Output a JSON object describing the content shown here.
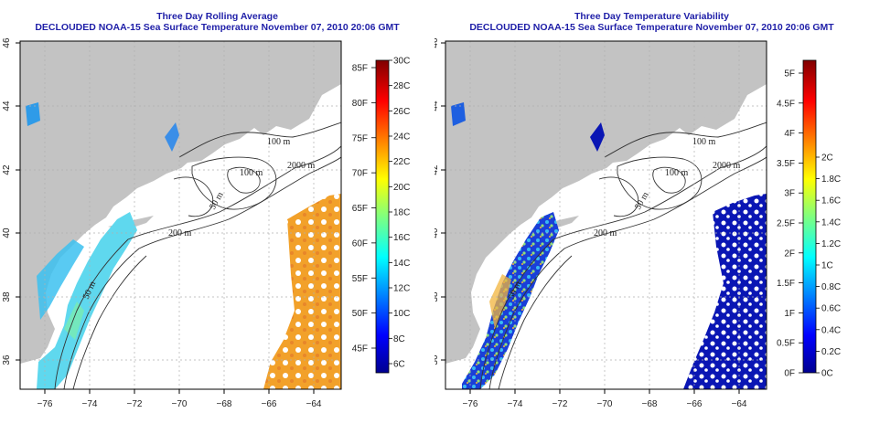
{
  "maps": [
    {
      "title": "Three Day Rolling Average",
      "subtitle": "DECLOUDED NOAA-15 Sea Surface Temperature November 07, 2010 20:06 GMT",
      "colorbar": {
        "left_labels": [
          "85F",
          "80F",
          "75F",
          "70F",
          "65F",
          "60F",
          "55F",
          "50F",
          "45F"
        ],
        "right_labels": [
          "30C",
          "28C",
          "26C",
          "24C",
          "22C",
          "20C",
          "18C",
          "16C",
          "14C",
          "12C",
          "10C",
          "8C",
          "6C"
        ]
      }
    },
    {
      "title": "Three Day Temperature Variability",
      "subtitle": "DECLOUDED NOAA-15 Sea Surface Temperature November 07, 2010 20:06 GMT",
      "colorbar": {
        "left_labels": [
          "5F",
          "4.5F",
          "4F",
          "3.5F",
          "3F",
          "2.5F",
          "2F",
          "1.5F",
          "1F",
          "0.5F",
          "0F"
        ],
        "right_labels": [
          "2C",
          "1.8C",
          "1.6C",
          "1.4C",
          "1.2C",
          "1C",
          "0.8C",
          "0.6C",
          "0.4C",
          "0.2C",
          "0C"
        ]
      }
    }
  ],
  "axes": {
    "x_ticks": [
      "−76",
      "−74",
      "−72",
      "−70",
      "−68",
      "−66",
      "−64"
    ],
    "y_ticks": [
      "36",
      "38",
      "40",
      "42",
      "44",
      "46"
    ]
  },
  "contour_labels": [
    "100 m",
    "100 m",
    "2000 m",
    "50 m",
    "200 m",
    "50 m"
  ],
  "colors": {
    "title": "#1f1fa8",
    "land": "#c3c3c3",
    "ocean": "#ffffff"
  }
}
